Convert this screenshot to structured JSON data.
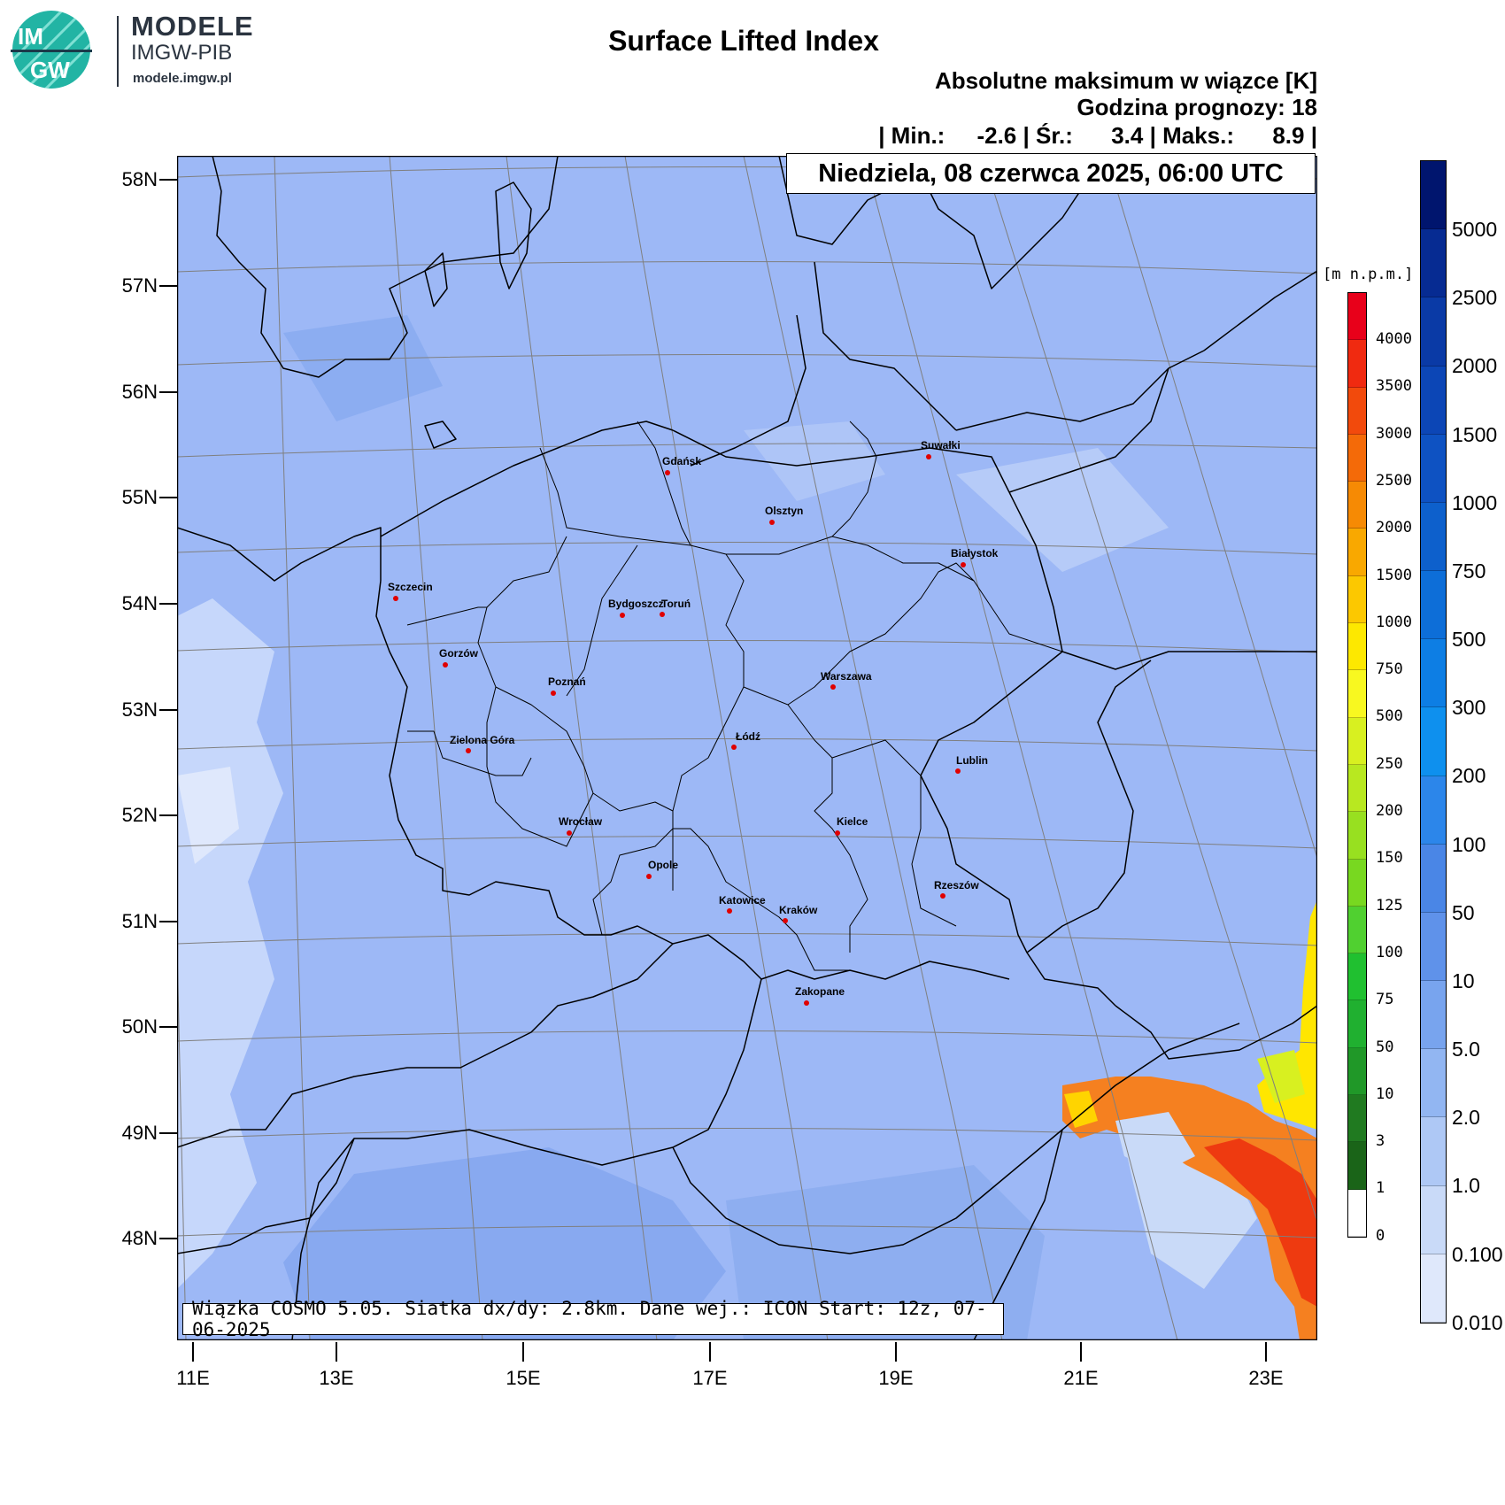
{
  "header": {
    "logo_badge_top": "IM",
    "logo_badge_bottom": "GW",
    "logo_title": "MODELE",
    "logo_subtitle": "IMGW-PIB",
    "logo_url": "modele.imgw.pl",
    "title": "Surface Lifted Index",
    "subtitle": "Absolutne maksimum w wiązce [K]",
    "forecast_hour": "Godzina prognozy: 18",
    "stats_line": "| Min.:     -2.6 | Śr.:      3.4 | Maks.:      8.9 |",
    "date": "Niedziela, 08 czerwca 2025, 06:00 UTC"
  },
  "info_box": "Wiązka COSMO 5.05. Siatka dx/dy: 2.8km. Dane wej.: ICON Start: 12z, 07-06-2025",
  "latitude_labels": [
    "58N",
    "57N",
    "56N",
    "55N",
    "54N",
    "53N",
    "52N",
    "51N",
    "50N",
    "49N",
    "48N"
  ],
  "longitude_labels": [
    "11E",
    "13E",
    "15E",
    "17E",
    "19E",
    "21E",
    "23E"
  ],
  "cities": [
    "Gdańsk",
    "Suwałki",
    "Olsztyn",
    "Białystok",
    "Szczecin",
    "Bydgoszcz",
    "Toruń",
    "Gorzów",
    "Poznań",
    "Warszawa",
    "Łódź",
    "Zielona Góra",
    "Lublin",
    "Wrocław",
    "Kielce",
    "Opole",
    "Rzeszów",
    "Katowice",
    "Kraków",
    "Zakopane"
  ],
  "terrain_colorbar": {
    "title": "[m n.p.m.]",
    "labels": [
      "4000",
      "3500",
      "3000",
      "2500",
      "2000",
      "1500",
      "1000",
      "750",
      "500",
      "250",
      "200",
      "150",
      "125",
      "100",
      "75",
      "50",
      "10",
      "3",
      "1",
      "0"
    ],
    "colors": [
      "#e8001a",
      "#f02a10",
      "#f24a0c",
      "#f46a08",
      "#f68a04",
      "#f9a800",
      "#fcc800",
      "#fde800",
      "#f8f820",
      "#d8f020",
      "#b8e820",
      "#98e020",
      "#78d820",
      "#50d030",
      "#20c030",
      "#20b030",
      "#209828",
      "#207a20",
      "#1a6418",
      "#ffffff"
    ]
  },
  "li_colorbar": {
    "labels": [
      "5000",
      "2500",
      "2000",
      "1500",
      "1000",
      "750",
      "500",
      "300",
      "200",
      "100",
      "50",
      "10",
      "5.0",
      "2.0",
      "1.0",
      "0.100",
      "0.010"
    ],
    "colors": [
      "#00156e",
      "#062b92",
      "#0a3aa6",
      "#0c46b6",
      "#0e52c2",
      "#0d60cc",
      "#0d6ed8",
      "#0d7ee4",
      "#0e90ee",
      "#2c86ea",
      "#4a86e6",
      "#5f92ea",
      "#78a4ee",
      "#92b6f2",
      "#aec8f5",
      "#c9daf8",
      "#dfe8fb"
    ]
  },
  "map_colors": {
    "background": "#9db8f6",
    "darker": "#85a6ef",
    "lighter": "#c6d7fb",
    "yellow": "#ffe600",
    "orange": "#f58020",
    "red": "#ee3a10"
  }
}
